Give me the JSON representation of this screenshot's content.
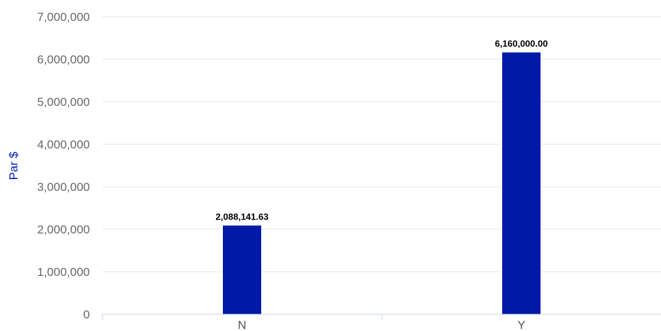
{
  "chart_data": {
    "type": "bar",
    "categories": [
      "N",
      "Y"
    ],
    "values": [
      2088141.63,
      6160000.0
    ],
    "data_labels": [
      "2,088,141.63",
      "6,160,000.00"
    ],
    "ylabel": "Par $",
    "xlabel": "",
    "title": "",
    "ylim": [
      0,
      7000000
    ],
    "yticks": [
      0,
      1000000,
      2000000,
      3000000,
      4000000,
      5000000,
      6000000,
      7000000
    ],
    "ytick_labels": [
      "0",
      "1,000,000",
      "2,000,000",
      "3,000,000",
      "4,000,000",
      "5,000,000",
      "6,000,000",
      "7,000,000"
    ],
    "grid": true,
    "legend": "none",
    "colors": {
      "bar": "#0019a8",
      "grid": "#e6e6e6",
      "axis_title": "#0019a8",
      "axis_line": "#ccd6eb"
    }
  }
}
